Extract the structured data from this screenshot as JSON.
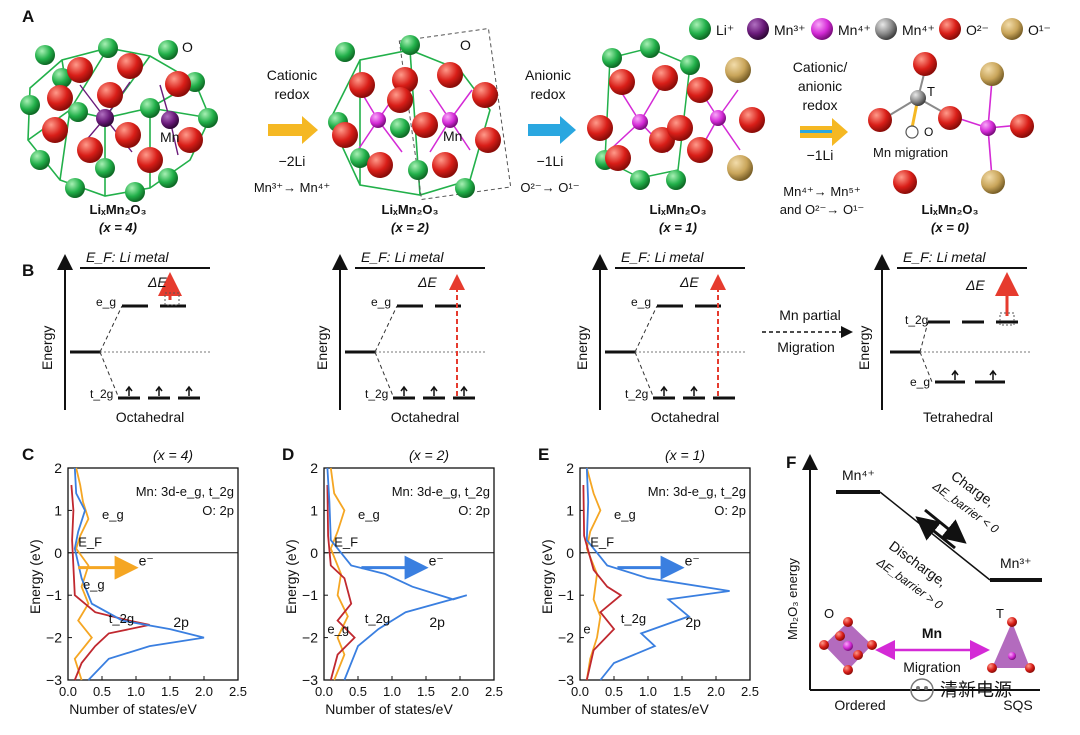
{
  "panel_labels": {
    "A": "A",
    "B": "B",
    "C": "C",
    "D": "D",
    "E": "E",
    "F": "F"
  },
  "legend": {
    "items": [
      {
        "label": "Li⁺",
        "color": "#22b04a"
      },
      {
        "label": "Mn³⁺",
        "color": "#6a1a7a"
      },
      {
        "label": "Mn⁴⁺",
        "color": "#d42ad6"
      },
      {
        "label": "Mn⁴⁺",
        "color": "#8a8a8a"
      },
      {
        "label": "O²⁻",
        "color": "#d91e18"
      },
      {
        "label": "O¹⁻",
        "color": "#c9a55a"
      }
    ]
  },
  "structures": [
    {
      "name": "LiₓMn₂O₃",
      "x": "(x = 4)"
    },
    {
      "name": "LiₓMn₂O₃",
      "x": "(x = 2)"
    },
    {
      "name": "LiₓMn₂O₃",
      "x": "(x = 1)"
    },
    {
      "name": "LiₓMn₂O₃",
      "x": "(x = 0)"
    }
  ],
  "structure_labels": {
    "o1": "O",
    "mn1": "Mn",
    "o2": "O",
    "mn2": "Mn",
    "td": "T",
    "od": "O",
    "mig": "Mn migration"
  },
  "steps": [
    {
      "title1": "Cationic",
      "title2": "redox",
      "li": "−2Li",
      "eq": "Mn³⁺→ Mn⁴⁺",
      "color": "#f5b823"
    },
    {
      "title1": "Anionic",
      "title2": "redox",
      "li": "−1Li",
      "eq": "O²⁻→ O¹⁻",
      "color": "#2aa7e0"
    },
    {
      "title1": "Cationic/",
      "title2": "anionic",
      "title3": "redox",
      "li": "−1Li",
      "eq1": "Mn⁴⁺→ Mn⁵⁺",
      "eq2": "and O²⁻→ O¹⁻",
      "color": "#f5b823"
    }
  ],
  "energy_diagrams": {
    "ef_label": "E_F: Li metal",
    "delta": "ΔE",
    "axis": "Energy",
    "eg": "e_g",
    "t2g": "t_2g",
    "octa": "Octahedral",
    "tetra": "Tetrahedral",
    "migration1": "Mn partial",
    "migration2": "Migration"
  },
  "dos_panels": [
    {
      "title": "(x = 4)",
      "legend1": "Mn: 3d-e_g, t_2g",
      "legend2": "O: 2p",
      "eg_up": "e_g",
      "ef": "E_F",
      "eg_low": "e_g",
      "t2g": "t_2g",
      "o2p": "2p",
      "electron": "e⁻"
    },
    {
      "title": "(x = 2)",
      "legend1": "Mn: 3d-e_g, t_2g",
      "legend2": "O: 2p",
      "eg_up": "e_g",
      "ef": "E_F",
      "eg_low": "e_g",
      "t2g": "t_2g",
      "o2p": "2p",
      "electron": "e⁻"
    },
    {
      "title": "(x = 1)",
      "legend1": "Mn: 3d-e_g, t_2g",
      "legend2": "O: 2p",
      "eg_up": "e_g",
      "ef": "E_F",
      "eg_low": "e",
      "t2g": "t_2g",
      "o2p": "2p",
      "electron": "e⁻"
    }
  ],
  "dos_axes": {
    "ylabel": "Energy (eV)",
    "xlabel": "Number of states/eV",
    "yticks": [
      "2",
      "1",
      "0",
      "−1",
      "−2",
      "−3"
    ],
    "xticks": [
      "0.0",
      "0.5",
      "1.0",
      "1.5",
      "2.0",
      "2.5"
    ]
  },
  "panel_f": {
    "ylabel": "Mn₂O₃ energy",
    "mn4": "Mn⁴⁺",
    "mn3": "Mn³⁺",
    "charge": "Charge,",
    "charge_de": "ΔE_barrier < 0",
    "discharge": "Discharge,",
    "discharge_de": "ΔE_barrier > 0",
    "oh": "O",
    "td": "T",
    "mn": "Mn",
    "migration": "Migration",
    "ordered": "Ordered",
    "sqs": "SQS"
  },
  "watermark": "清新电源",
  "colors": {
    "eg": "#f5a623",
    "t2g": "#c0282f",
    "o2p": "#3a7fe0",
    "li": "#22b04a",
    "o": "#d91e18",
    "mn4": "#d42ad6",
    "mn3": "#6a1a7a",
    "o1": "#c9a55a",
    "red_arrow": "#e63b2e"
  }
}
